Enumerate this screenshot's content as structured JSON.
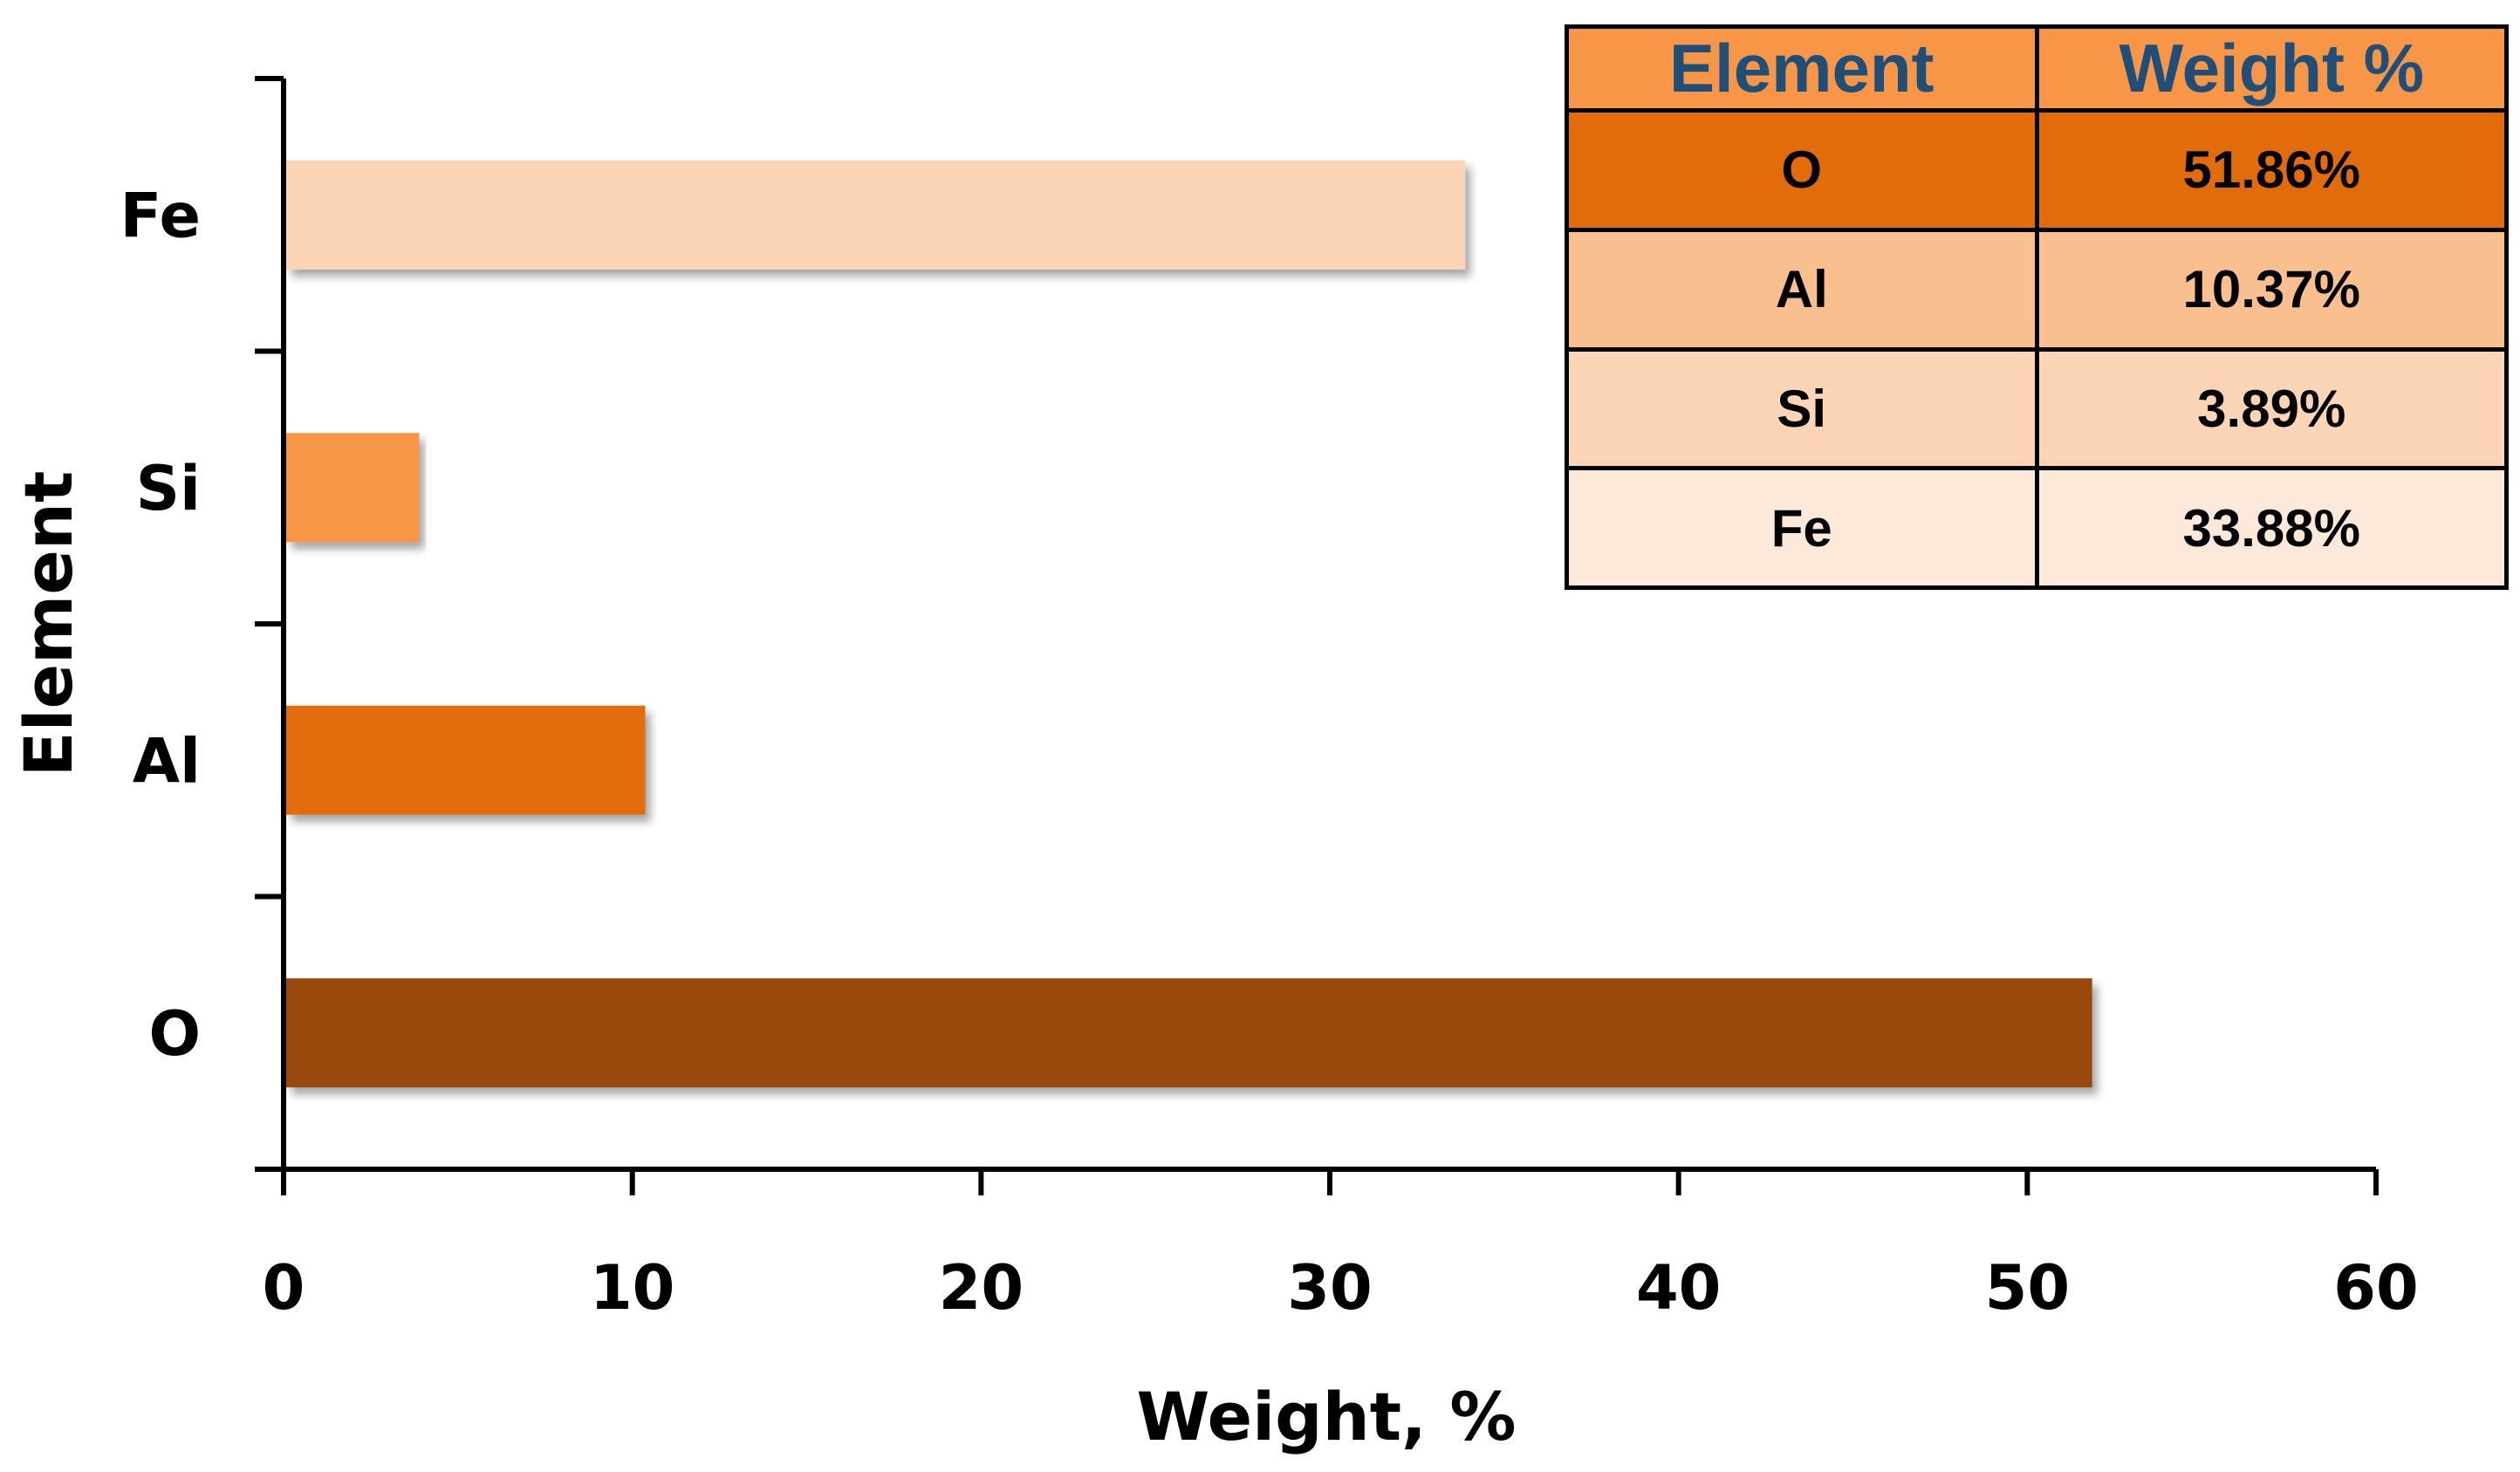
{
  "chart_data": {
    "type": "bar",
    "orientation": "horizontal",
    "categories": [
      "O",
      "Al",
      "Si",
      "Fe"
    ],
    "values": [
      51.86,
      10.37,
      3.89,
      33.88
    ],
    "bar_colors": [
      "#9a4a0a",
      "#e36c0a",
      "#f79646",
      "#fbd5b5"
    ],
    "xlabel": "Weight, %",
    "ylabel": "Element",
    "xlim": [
      0,
      60
    ],
    "xticks": [
      "0",
      "10",
      "20",
      "30",
      "40",
      "50",
      "60"
    ],
    "grid": false,
    "legend": "none"
  },
  "table": {
    "headers": [
      "Element",
      "Weight %"
    ],
    "header_color": "#f79646",
    "rows": [
      {
        "element": "O",
        "weight": "51.86%",
        "color": "#e36c0a"
      },
      {
        "element": "Al",
        "weight": "10.37%",
        "color": "#f9bf8f"
      },
      {
        "element": "Si",
        "weight": "3.89%",
        "color": "#fbd5b5"
      },
      {
        "element": "Fe",
        "weight": "33.88%",
        "color": "#fde9d9"
      }
    ]
  }
}
